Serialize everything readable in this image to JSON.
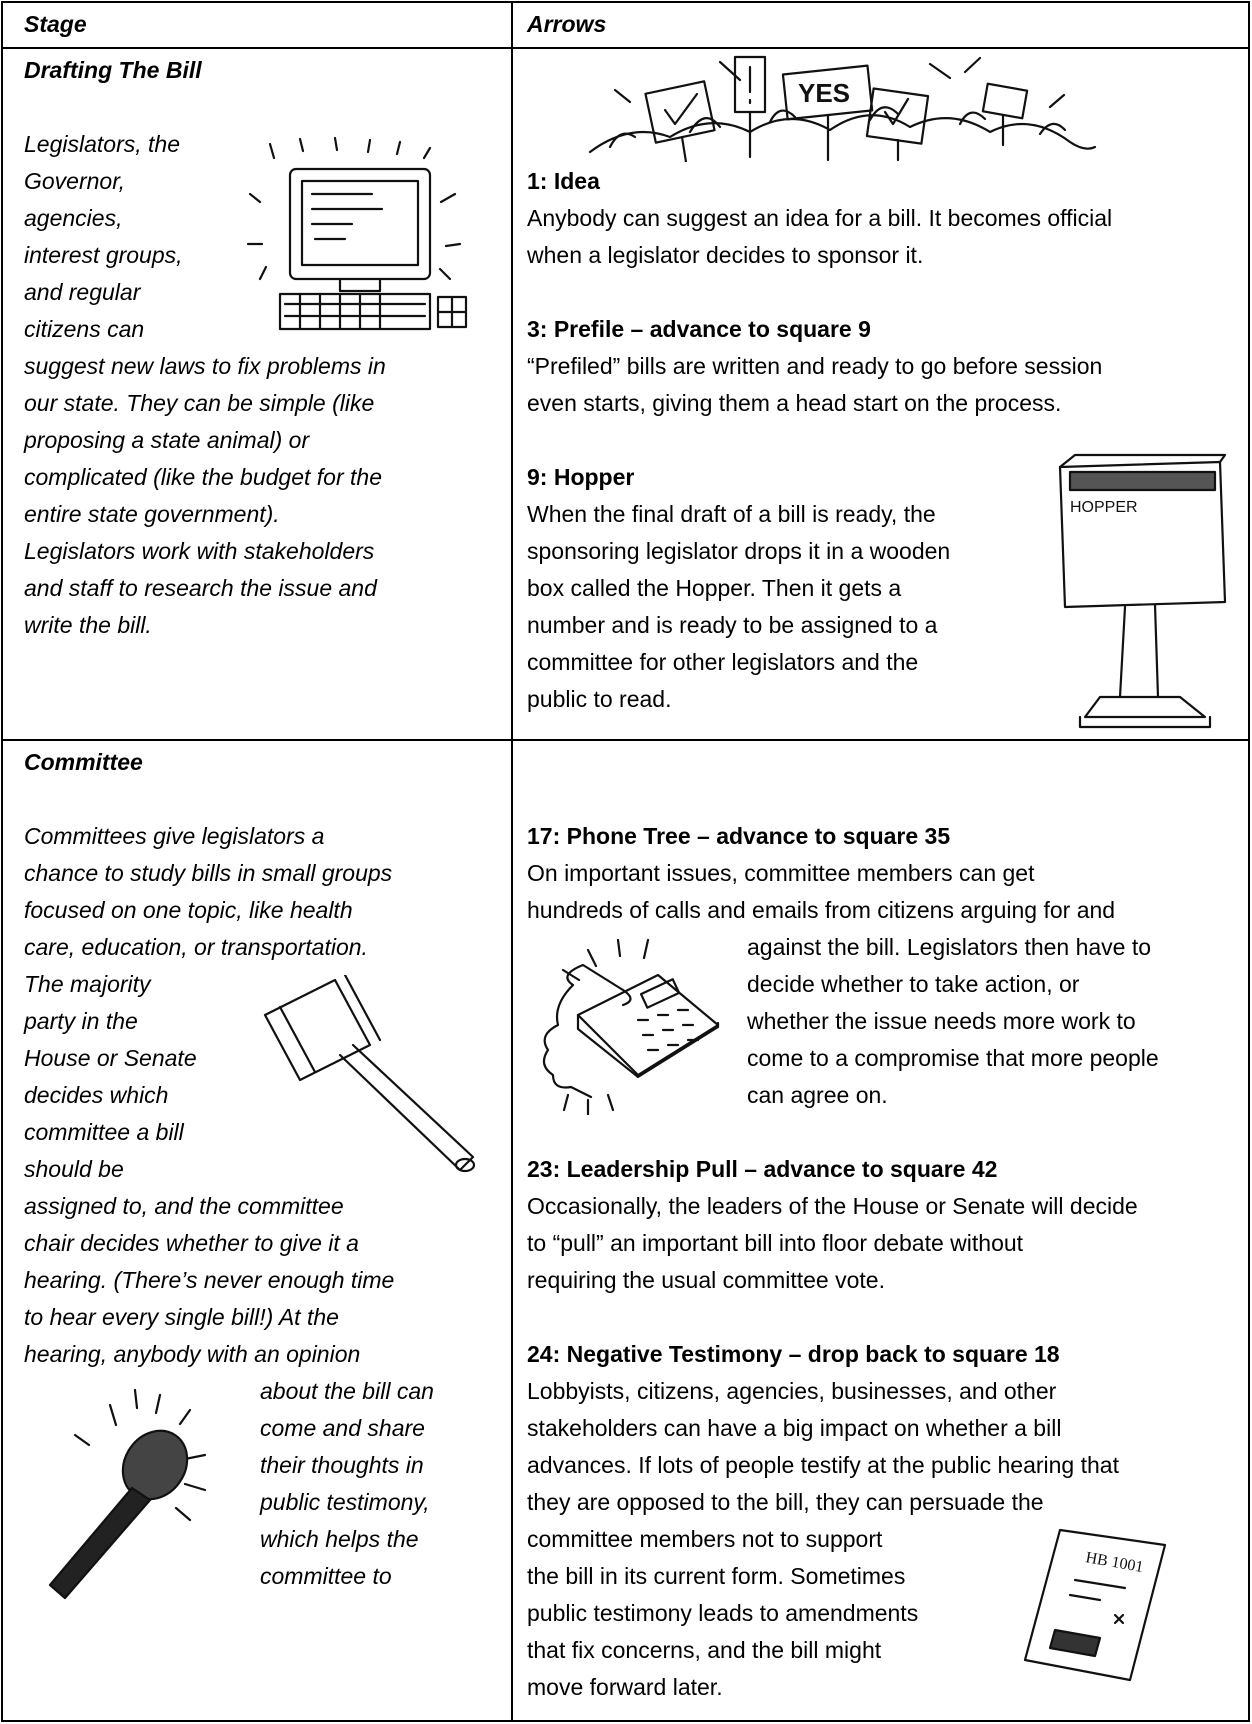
{
  "header": {
    "stage": "Stage",
    "arrows": "Arrows"
  },
  "rows": [
    {
      "stage": {
        "title": "Drafting The Bill",
        "lines": [
          "Legislators, the",
          "Governor,",
          "agencies,",
          "interest groups,",
          "and regular",
          "citizens can",
          "suggest new laws to fix problems in",
          "our state. They can be simple (like",
          "proposing a state animal) or",
          "complicated (like the budget for the",
          "entire state government).",
          "Legislators work with stakeholders",
          "and staff to research the issue and",
          "write the bill."
        ]
      },
      "arrows": {
        "items": [
          {
            "title": "1: Idea",
            "lines": [
              "Anybody can suggest an idea for a bill. It becomes official",
              "when a legislator decides to sponsor it."
            ]
          },
          {
            "title": "3: Prefile – advance to square 9",
            "lines": [
              "“Prefiled” bills are written and ready to go before session",
              "even starts, giving them a head start on the process."
            ]
          },
          {
            "title": "9: Hopper",
            "lines": [
              "When the final draft of a bill is ready, the",
              "sponsoring legislator drops it in a wooden",
              "box called the Hopper. Then it gets a",
              "number and is ready to be assigned to a",
              "committee for other legislators and the",
              "public to read."
            ]
          }
        ]
      }
    },
    {
      "stage": {
        "title": "Committee",
        "lines": [
          "Committees give legislators a",
          "chance to study bills in small groups",
          "focused on one topic, like health",
          "care, education, or transportation.",
          "The majority",
          "party in the",
          "House or Senate",
          "decides which",
          "committee a bill",
          "should be",
          "assigned to, and the committee",
          "chair decides whether to give it a",
          "hearing. (There’s never enough time",
          "to hear every single bill!) At the",
          "hearing, anybody with an opinion",
          "about the bill can",
          "come and share",
          "their thoughts in",
          "public testimony,",
          "which helps the",
          "committee to"
        ]
      },
      "arrows": {
        "items": [
          {
            "title": "17: Phone Tree – advance to square 35",
            "lines": [
              "On important issues, committee members can get",
              "hundreds of calls and emails from citizens arguing for and",
              "against the bill. Legislators then have to",
              "decide whether to take action, or",
              "whether the issue needs more work to",
              "come to a compromise that more people",
              "can agree on."
            ]
          },
          {
            "title": "23: Leadership Pull – advance to square 42",
            "lines": [
              "Occasionally, the leaders of the House or Senate will decide",
              "to “pull” an important bill into floor debate without",
              "requiring the usual committee vote."
            ]
          },
          {
            "title": "24: Negative Testimony – drop back to square 18",
            "lines": [
              "Lobbyists, citizens, agencies, businesses, and other",
              "stakeholders can have a big impact on whether a bill",
              "advances. If lots of people testify at the public hearing that",
              "they are opposed to the bill, they can persuade the",
              "committee members not to support",
              "the bill in its current form. Sometimes",
              "public testimony leads to amendments",
              "that fix concerns, and the bill might",
              "move forward later."
            ]
          }
        ]
      }
    }
  ]
}
